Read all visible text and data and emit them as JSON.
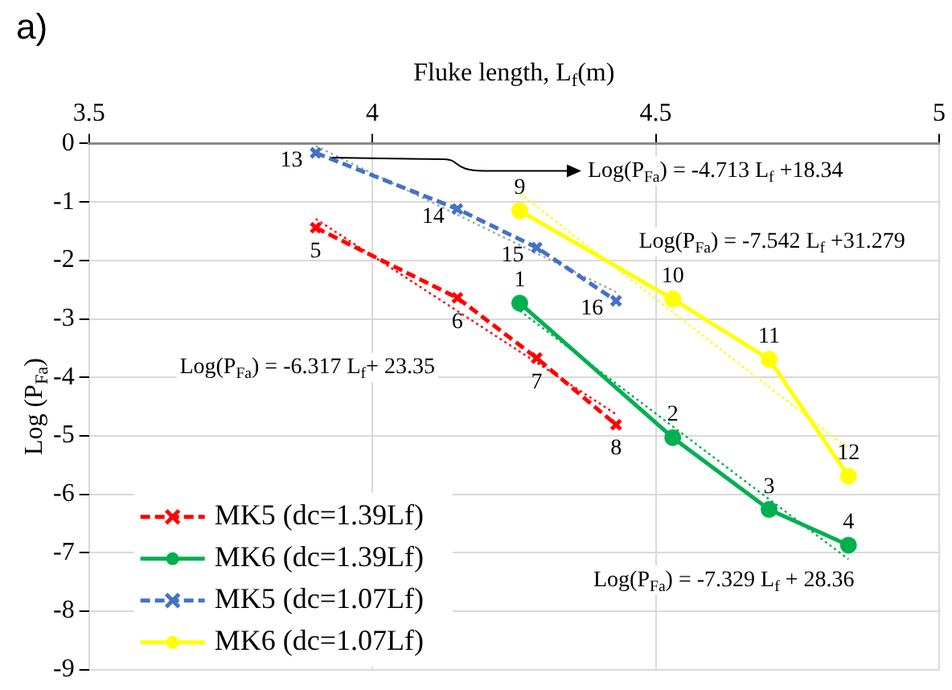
{
  "chart_data": {
    "type": "line",
    "xlabel": "Fluke length, L$_{f}$(m)",
    "ylabel": "Log (P$_{Fa}$)",
    "xlim": [
      3.5,
      5
    ],
    "xticks": [
      3.5,
      4,
      4.5,
      5
    ],
    "ylim": [
      -9,
      0
    ],
    "yticks": [
      0,
      -1,
      -2,
      -3,
      -4,
      -5,
      -6,
      -7,
      -8,
      -9
    ],
    "grid": true,
    "legend": "bottom left",
    "series": [
      {
        "name": "MK5 (dc=1.39Lf)",
        "color": "#ff0000",
        "marker": "cross",
        "line_style": "dashed",
        "x": [
          3.9,
          4.15,
          4.29,
          4.43
        ],
        "values": [
          -1.44,
          -2.64,
          -3.67,
          -4.81
        ]
      },
      {
        "name": "MK6 (dc=1.39Lf)",
        "color": "#00b050",
        "marker": "circle",
        "line_style": "solid",
        "x": [
          4.26,
          4.53,
          4.7,
          4.84
        ],
        "values": [
          -2.73,
          -5.03,
          -6.26,
          -6.87
        ]
      },
      {
        "name": "MK5 (dc=1.07Lf)",
        "color": "#4472c4",
        "marker": "cross",
        "line_style": "dashed",
        "x": [
          3.9,
          4.15,
          4.29,
          4.43
        ],
        "values": [
          -0.16,
          -1.12,
          -1.78,
          -2.69
        ]
      },
      {
        "name": "MK6 (dc=1.07Lf)",
        "color": "#ffff00",
        "marker": "circle",
        "line_style": "solid",
        "x": [
          4.26,
          4.53,
          4.7,
          4.84
        ],
        "values": [
          -1.15,
          -2.66,
          -3.69,
          -5.69
        ]
      },
      {
        "type": "line",
        "color": "#ff0000",
        "marker": "none",
        "line_style": "dotted",
        "x": [
          3.9,
          4.43
        ],
        "values": [
          -1.29,
          -4.63
        ]
      },
      {
        "type": "line",
        "color": "#00b050",
        "marker": "none",
        "line_style": "dotted",
        "x": [
          4.26,
          4.84
        ],
        "values": [
          -2.86,
          -7.11
        ]
      },
      {
        "type": "line",
        "color": "#a6a6a6",
        "marker": "none",
        "line_style": "dotted",
        "x": [
          3.9,
          4.43
        ],
        "values": [
          -0.04,
          -2.54
        ]
      },
      {
        "type": "line",
        "color": "#ffff00",
        "marker": "none",
        "line_style": "dotted",
        "x": [
          4.26,
          4.84
        ],
        "values": [
          -0.85,
          -5.22
        ]
      }
    ],
    "annotations": [
      "a)",
      "Log(P$_{Fa}$) = -4.713 L$_{f}$ +18.34",
      "Log(P$_{Fa}$) = -7.542 L$_{f}$ +31.279",
      "Log(P$_{Fa}$) = -6.317 L$_{f}$+ 23.35",
      "Log(P$_{Fa}$) = -7.329 L$_{f}$ + 28.36",
      {
        "text": "1",
        "x": 4.26,
        "y": -2.73
      },
      {
        "text": "2",
        "x": 4.53,
        "y": -5.03
      },
      {
        "text": "3",
        "x": 4.7,
        "y": -6.26
      },
      {
        "text": "4",
        "x": 4.84,
        "y": -6.87
      },
      {
        "text": "5",
        "x": 3.9,
        "y": -1.44
      },
      {
        "text": "6",
        "x": 4.15,
        "y": -2.64
      },
      {
        "text": "7",
        "x": 4.29,
        "y": -3.67
      },
      {
        "text": "8",
        "x": 4.43,
        "y": -4.81
      },
      {
        "text": "9",
        "x": 4.26,
        "y": -1.15
      },
      {
        "text": "10",
        "x": 4.53,
        "y": -2.66
      },
      {
        "text": "11",
        "x": 4.7,
        "y": -3.69
      },
      {
        "text": "12",
        "x": 4.84,
        "y": -5.69
      },
      {
        "text": "13",
        "x": 3.9,
        "y": -0.16
      },
      {
        "text": "14",
        "x": 4.15,
        "y": -1.12
      },
      {
        "text": "15",
        "x": 4.29,
        "y": -1.78
      },
      {
        "text": "16",
        "x": 4.43,
        "y": -2.69
      }
    ]
  }
}
